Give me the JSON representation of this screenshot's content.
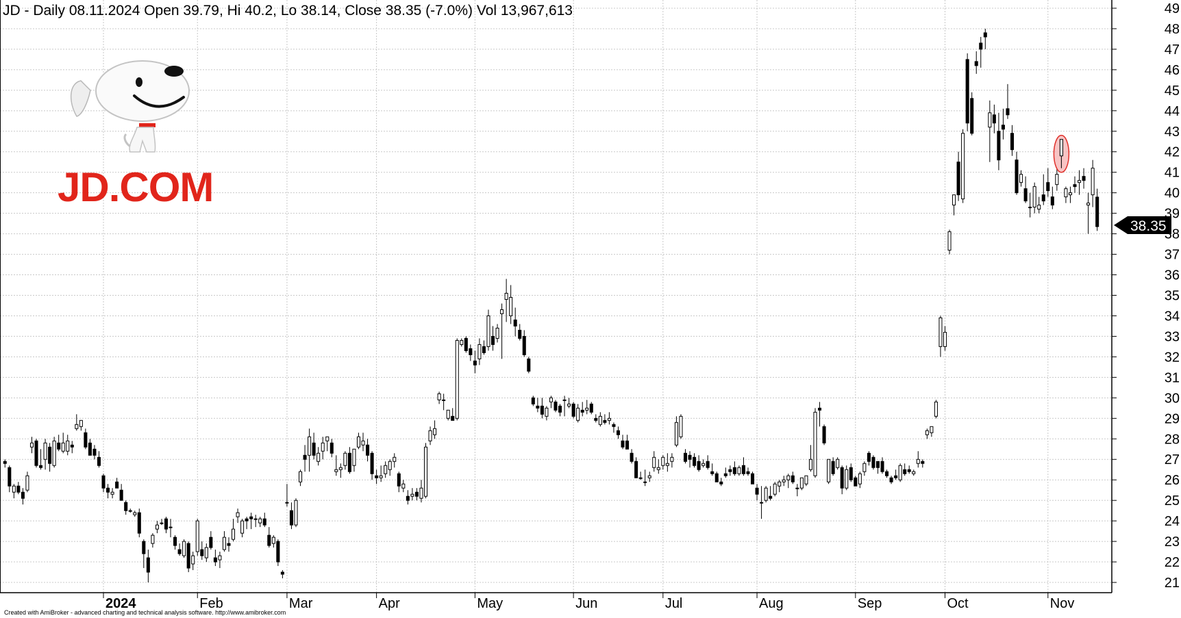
{
  "chart_data": {
    "type": "candlestick",
    "title": "JD - Daily 08.11.2024 Open 39.79, Hi 40.2, Lo 38.14, Close 38.35 (-7.0%) Vol 13,967,613",
    "ylim": [
      20.5,
      49.4
    ],
    "y_ticks": [
      21,
      22,
      23,
      24,
      25,
      26,
      27,
      28,
      29,
      30,
      31,
      32,
      33,
      34,
      35,
      36,
      37,
      38,
      39,
      40,
      41,
      42,
      43,
      44,
      45,
      46,
      47,
      48,
      49
    ],
    "x_labels": [
      {
        "label": "2024",
        "bold": true,
        "index": 22
      },
      {
        "label": "Feb",
        "bold": false,
        "index": 43
      },
      {
        "label": "Mar",
        "bold": false,
        "index": 63
      },
      {
        "label": "Apr",
        "bold": false,
        "index": 83
      },
      {
        "label": "May",
        "bold": false,
        "index": 105
      },
      {
        "label": "Jun",
        "bold": false,
        "index": 127
      },
      {
        "label": "Jul",
        "bold": false,
        "index": 147
      },
      {
        "label": "Aug",
        "bold": false,
        "index": 168
      },
      {
        "label": "Sep",
        "bold": false,
        "index": 190
      },
      {
        "label": "Oct",
        "bold": false,
        "index": 210
      },
      {
        "label": "Nov",
        "bold": false,
        "index": 233
      }
    ],
    "grid": true,
    "last_price": "38.35",
    "highlight_index": 236,
    "ohlc": [
      [
        26.9,
        27.0,
        26.6,
        26.8
      ],
      [
        26.6,
        26.7,
        25.4,
        25.7
      ],
      [
        25.4,
        25.8,
        25.1,
        25.7
      ],
      [
        25.7,
        25.9,
        25.3,
        25.4
      ],
      [
        25.4,
        25.6,
        24.8,
        25.1
      ],
      [
        25.5,
        26.4,
        25.4,
        26.2
      ],
      [
        27.6,
        28.1,
        27.3,
        27.8
      ],
      [
        27.9,
        28.0,
        26.6,
        26.7
      ],
      [
        26.7,
        27.5,
        26.5,
        26.6
      ],
      [
        27.0,
        28.0,
        26.5,
        27.8
      ],
      [
        27.6,
        27.8,
        26.4,
        26.8
      ],
      [
        26.7,
        28.1,
        26.6,
        27.9
      ],
      [
        27.8,
        28.2,
        27.4,
        27.5
      ],
      [
        27.4,
        28.3,
        27.3,
        27.8
      ],
      [
        27.4,
        28.2,
        27.2,
        27.9
      ],
      [
        27.7,
        27.9,
        27.3,
        27.6
      ],
      [
        28.5,
        29.2,
        28.4,
        28.7
      ],
      [
        28.6,
        28.9,
        28.4,
        28.9
      ],
      [
        28.3,
        28.5,
        27.5,
        27.6
      ],
      [
        27.8,
        28.0,
        27.2,
        27.2
      ],
      [
        27.5,
        27.7,
        27.0,
        27.2
      ],
      [
        27.1,
        27.4,
        26.6,
        26.7
      ],
      [
        26.2,
        26.3,
        25.4,
        25.6
      ],
      [
        25.6,
        25.8,
        25.1,
        25.4
      ],
      [
        25.3,
        25.6,
        25.1,
        25.4
      ],
      [
        25.9,
        26.1,
        25.6,
        25.6
      ],
      [
        25.5,
        25.8,
        25.0,
        25.0
      ],
      [
        24.9,
        25.0,
        24.3,
        24.5
      ],
      [
        24.5,
        24.6,
        24.4,
        24.5
      ],
      [
        24.3,
        24.5,
        24.2,
        24.4
      ],
      [
        24.4,
        24.6,
        23.2,
        23.4
      ],
      [
        23.0,
        23.1,
        21.7,
        22.4
      ],
      [
        22.2,
        22.6,
        21.0,
        21.5
      ],
      [
        22.9,
        23.4,
        22.7,
        23.3
      ],
      [
        23.6,
        24.0,
        23.4,
        23.8
      ],
      [
        23.9,
        24.1,
        23.8,
        23.9
      ],
      [
        24.1,
        24.2,
        23.4,
        23.6
      ],
      [
        23.7,
        24.1,
        23.2,
        23.7
      ],
      [
        23.2,
        23.3,
        22.6,
        22.8
      ],
      [
        22.6,
        22.9,
        22.3,
        22.4
      ],
      [
        22.3,
        23.1,
        22.2,
        23.0
      ],
      [
        22.9,
        23.0,
        21.5,
        21.7
      ],
      [
        21.9,
        22.5,
        21.6,
        22.3
      ],
      [
        22.5,
        24.1,
        22.3,
        24.0
      ],
      [
        22.6,
        23.0,
        22.1,
        22.3
      ],
      [
        22.2,
        22.9,
        22.0,
        22.7
      ],
      [
        23.2,
        23.5,
        22.6,
        22.7
      ],
      [
        22.2,
        22.6,
        21.8,
        22.0
      ],
      [
        22.1,
        22.5,
        21.7,
        22.3
      ],
      [
        22.6,
        23.5,
        22.5,
        23.2
      ],
      [
        22.9,
        23.2,
        22.5,
        22.8
      ],
      [
        23.1,
        24.1,
        23.0,
        23.6
      ],
      [
        24.2,
        24.6,
        23.9,
        24.4
      ],
      [
        23.4,
        24.1,
        23.2,
        24.0
      ],
      [
        24.1,
        24.2,
        23.6,
        24.0
      ],
      [
        24.2,
        24.4,
        23.6,
        24.1
      ],
      [
        24.1,
        24.3,
        23.7,
        24.1
      ],
      [
        23.9,
        24.2,
        23.7,
        24.1
      ],
      [
        24.1,
        24.4,
        23.7,
        23.8
      ],
      [
        23.3,
        23.7,
        22.7,
        22.8
      ],
      [
        22.9,
        23.3,
        22.7,
        23.2
      ],
      [
        23.0,
        23.1,
        21.8,
        22.0
      ],
      [
        21.5,
        21.6,
        21.2,
        21.4
      ],
      [
        24.9,
        25.8,
        24.7,
        24.9
      ],
      [
        24.5,
        24.9,
        23.6,
        23.8
      ],
      [
        23.8,
        25.1,
        23.7,
        25.0
      ],
      [
        25.9,
        26.5,
        25.7,
        26.4
      ],
      [
        27.2,
        27.7,
        26.4,
        27.0
      ],
      [
        27.2,
        28.5,
        26.4,
        28.1
      ],
      [
        27.8,
        28.3,
        27.0,
        27.2
      ],
      [
        26.9,
        27.6,
        26.7,
        27.3
      ],
      [
        27.4,
        28.1,
        27.0,
        27.8
      ],
      [
        27.9,
        28.1,
        27.4,
        28.1
      ],
      [
        27.8,
        28.0,
        27.1,
        27.3
      ],
      [
        26.4,
        27.2,
        26.2,
        26.5
      ],
      [
        26.5,
        26.8,
        26.1,
        26.6
      ],
      [
        26.7,
        27.4,
        26.5,
        27.3
      ],
      [
        27.3,
        27.6,
        26.3,
        26.4
      ],
      [
        26.7,
        27.5,
        26.4,
        27.5
      ],
      [
        27.6,
        28.3,
        27.5,
        28.1
      ],
      [
        27.7,
        28.3,
        27.4,
        27.9
      ],
      [
        27.7,
        28.0,
        26.9,
        27.2
      ],
      [
        27.3,
        27.4,
        26.0,
        26.3
      ],
      [
        26.2,
        26.5,
        25.8,
        26.1
      ],
      [
        26.1,
        26.7,
        25.9,
        26.2
      ],
      [
        26.3,
        26.9,
        26.1,
        26.7
      ],
      [
        26.5,
        27.0,
        26.2,
        26.9
      ],
      [
        26.9,
        27.3,
        26.6,
        27.1
      ],
      [
        26.3,
        26.4,
        25.4,
        25.7
      ],
      [
        25.6,
        26.0,
        25.4,
        25.8
      ],
      [
        25.2,
        25.5,
        24.8,
        25.0
      ],
      [
        25.2,
        25.6,
        25.0,
        25.3
      ],
      [
        25.4,
        25.6,
        25.0,
        25.2
      ],
      [
        25.1,
        26.0,
        24.9,
        25.6
      ],
      [
        25.2,
        27.8,
        25.1,
        27.6
      ],
      [
        27.9,
        28.6,
        27.7,
        28.4
      ],
      [
        28.2,
        28.9,
        28.0,
        28.5
      ],
      [
        29.9,
        30.3,
        29.7,
        30.2
      ],
      [
        29.9,
        30.2,
        29.4,
        29.9
      ],
      [
        29.0,
        29.4,
        28.9,
        29.4
      ],
      [
        29.1,
        29.5,
        28.9,
        28.9
      ],
      [
        29.0,
        32.9,
        28.9,
        32.8
      ],
      [
        32.6,
        32.9,
        32.5,
        32.8
      ],
      [
        32.9,
        33.0,
        32.2,
        32.3
      ],
      [
        32.4,
        32.6,
        31.8,
        32.1
      ],
      [
        31.8,
        32.3,
        31.2,
        31.6
      ],
      [
        31.9,
        32.9,
        31.6,
        32.6
      ],
      [
        32.5,
        32.8,
        32.1,
        32.2
      ],
      [
        32.5,
        34.3,
        32.3,
        34.0
      ],
      [
        33.0,
        33.5,
        32.3,
        32.6
      ],
      [
        32.9,
        33.6,
        32.7,
        33.4
      ],
      [
        34.1,
        34.6,
        31.9,
        34.3
      ],
      [
        34.8,
        35.8,
        33.7,
        35.1
      ],
      [
        34.0,
        35.5,
        33.6,
        34.9
      ],
      [
        33.8,
        34.4,
        33.0,
        33.5
      ],
      [
        33.3,
        33.6,
        32.8,
        32.9
      ],
      [
        33.0,
        33.3,
        32.0,
        32.1
      ],
      [
        31.9,
        32.0,
        31.2,
        31.3
      ],
      [
        30.0,
        30.1,
        29.6,
        29.7
      ],
      [
        29.6,
        30.0,
        29.3,
        29.5
      ],
      [
        29.6,
        30.0,
        29.0,
        29.2
      ],
      [
        29.1,
        29.6,
        28.9,
        29.5
      ],
      [
        29.8,
        30.1,
        29.5,
        30.0
      ],
      [
        29.8,
        29.9,
        29.3,
        29.4
      ],
      [
        29.6,
        29.7,
        29.1,
        29.3
      ],
      [
        29.9,
        30.1,
        29.1,
        29.9
      ],
      [
        29.6,
        30.0,
        29.5,
        29.7
      ],
      [
        29.7,
        29.8,
        29.0,
        29.1
      ],
      [
        28.9,
        29.7,
        28.8,
        29.5
      ],
      [
        29.4,
        29.8,
        29.1,
        29.3
      ],
      [
        29.4,
        29.9,
        29.2,
        29.5
      ],
      [
        29.7,
        29.8,
        29.2,
        29.3
      ],
      [
        29.0,
        29.2,
        28.8,
        28.9
      ],
      [
        28.7,
        29.3,
        28.6,
        29.1
      ],
      [
        28.9,
        29.2,
        28.7,
        28.8
      ],
      [
        28.9,
        29.3,
        28.7,
        29.0
      ],
      [
        28.7,
        28.8,
        28.3,
        28.6
      ],
      [
        28.4,
        28.6,
        28.0,
        28.2
      ],
      [
        27.9,
        28.2,
        27.5,
        27.6
      ],
      [
        27.9,
        28.2,
        27.5,
        27.5
      ],
      [
        27.3,
        27.5,
        26.8,
        26.9
      ],
      [
        26.9,
        27.1,
        26.1,
        26.1
      ],
      [
        26.1,
        26.4,
        26.0,
        26.1
      ],
      [
        25.9,
        26.5,
        25.7,
        25.9
      ],
      [
        26.1,
        26.4,
        25.9,
        26.2
      ],
      [
        26.6,
        27.4,
        26.4,
        27.1
      ],
      [
        26.5,
        27.0,
        26.3,
        26.6
      ],
      [
        26.7,
        27.2,
        26.5,
        27.1
      ],
      [
        26.7,
        27.3,
        26.4,
        26.8
      ],
      [
        26.9,
        27.3,
        26.6,
        27.1
      ],
      [
        27.7,
        29.1,
        27.6,
        28.8
      ],
      [
        28.1,
        29.2,
        28.0,
        29.1
      ],
      [
        27.3,
        27.5,
        26.8,
        26.9
      ],
      [
        27.2,
        27.4,
        26.6,
        27.0
      ],
      [
        27.1,
        27.3,
        26.6,
        26.7
      ],
      [
        26.9,
        27.2,
        26.4,
        26.5
      ],
      [
        26.7,
        27.0,
        26.6,
        26.8
      ],
      [
        26.9,
        27.2,
        26.5,
        26.6
      ],
      [
        26.4,
        26.8,
        26.2,
        26.3
      ],
      [
        26.3,
        26.4,
        25.9,
        25.9
      ],
      [
        25.9,
        26.1,
        25.7,
        25.8
      ],
      [
        26.3,
        26.6,
        26.1,
        26.2
      ],
      [
        26.5,
        26.7,
        26.2,
        26.4
      ],
      [
        26.6,
        26.9,
        26.2,
        26.3
      ],
      [
        26.3,
        26.7,
        26.2,
        26.6
      ],
      [
        26.7,
        27.1,
        26.2,
        26.3
      ],
      [
        26.4,
        26.6,
        26.2,
        26.3
      ],
      [
        26.3,
        26.4,
        25.8,
        25.8
      ],
      [
        25.6,
        25.8,
        25.0,
        25.3
      ],
      [
        24.9,
        25.7,
        24.1,
        24.9
      ],
      [
        25.0,
        25.7,
        24.9,
        25.6
      ],
      [
        25.2,
        25.7,
        25.0,
        25.1
      ],
      [
        25.3,
        25.9,
        25.2,
        25.8
      ],
      [
        25.7,
        26.0,
        25.4,
        25.9
      ],
      [
        25.9,
        26.2,
        25.7,
        26.0
      ],
      [
        26.0,
        26.3,
        25.6,
        26.2
      ],
      [
        26.2,
        26.4,
        25.8,
        25.9
      ],
      [
        25.6,
        25.8,
        25.2,
        25.6
      ],
      [
        25.6,
        26.1,
        25.5,
        26.1
      ],
      [
        25.8,
        26.2,
        25.7,
        26.2
      ],
      [
        26.5,
        27.7,
        26.4,
        27.0
      ],
      [
        26.2,
        29.5,
        26.1,
        29.3
      ],
      [
        29.5,
        29.8,
        28.6,
        29.4
      ],
      [
        28.6,
        28.7,
        27.7,
        27.8
      ],
      [
        25.9,
        27.0,
        25.8,
        27.0
      ],
      [
        26.9,
        27.1,
        26.2,
        26.3
      ],
      [
        26.6,
        27.1,
        26.5,
        27.0
      ],
      [
        26.6,
        26.7,
        25.3,
        25.6
      ],
      [
        25.6,
        26.7,
        25.5,
        26.5
      ],
      [
        26.6,
        26.8,
        25.9,
        26.0
      ],
      [
        26.1,
        26.2,
        25.7,
        25.7
      ],
      [
        25.8,
        26.4,
        25.6,
        26.3
      ],
      [
        26.4,
        26.9,
        26.2,
        26.8
      ],
      [
        27.3,
        27.4,
        26.7,
        26.9
      ],
      [
        27.1,
        27.2,
        26.5,
        26.6
      ],
      [
        26.9,
        26.9,
        26.3,
        26.6
      ],
      [
        26.9,
        27.1,
        26.3,
        26.4
      ],
      [
        26.4,
        26.5,
        26.1,
        26.2
      ],
      [
        26.1,
        26.2,
        25.8,
        25.9
      ],
      [
        26.2,
        26.5,
        26.0,
        26.1
      ],
      [
        26.0,
        26.8,
        25.9,
        26.7
      ],
      [
        26.5,
        26.8,
        26.2,
        26.3
      ],
      [
        26.5,
        26.7,
        26.3,
        26.4
      ],
      [
        26.3,
        26.5,
        26.2,
        26.4
      ],
      [
        26.8,
        27.4,
        26.6,
        27.0
      ],
      [
        26.9,
        27.0,
        26.6,
        26.8
      ],
      [
        28.2,
        28.5,
        28.0,
        28.4
      ],
      [
        28.3,
        28.6,
        28.1,
        28.6
      ],
      [
        29.1,
        29.9,
        29.0,
        29.8
      ],
      [
        32.5,
        34.0,
        32.0,
        33.9
      ],
      [
        32.5,
        33.5,
        32.3,
        33.2
      ],
      [
        37.2,
        38.2,
        37.0,
        38.1
      ],
      [
        39.4,
        39.9,
        38.9,
        39.9
      ],
      [
        41.5,
        42.0,
        39.6,
        39.9
      ],
      [
        39.7,
        43.1,
        39.5,
        42.9
      ],
      [
        46.5,
        46.8,
        43.0,
        43.4
      ],
      [
        44.6,
        44.9,
        42.8,
        42.9
      ],
      [
        46.4,
        46.9,
        45.8,
        46.2
      ],
      [
        47.3,
        47.6,
        46.1,
        47.0
      ],
      [
        47.8,
        48.0,
        47.0,
        47.6
      ],
      [
        43.2,
        44.5,
        41.5,
        43.9
      ],
      [
        43.8,
        44.3,
        42.9,
        43.4
      ],
      [
        43.0,
        43.9,
        41.1,
        41.6
      ],
      [
        43.3,
        44.1,
        42.6,
        43.1
      ],
      [
        44.1,
        45.3,
        43.6,
        43.8
      ],
      [
        42.9,
        43.3,
        41.8,
        42.1
      ],
      [
        41.6,
        42.0,
        39.9,
        40.0
      ],
      [
        40.5,
        41.1,
        40.3,
        40.9
      ],
      [
        40.2,
        40.8,
        39.5,
        39.6
      ],
      [
        39.3,
        40.0,
        38.8,
        39.3
      ],
      [
        39.3,
        40.5,
        39.0,
        40.3
      ],
      [
        39.2,
        39.8,
        39.0,
        39.4
      ],
      [
        39.9,
        40.9,
        39.4,
        39.6
      ],
      [
        40.5,
        41.2,
        39.8,
        40.1
      ],
      [
        39.8,
        40.3,
        39.2,
        39.4
      ],
      [
        40.4,
        41.2,
        40.1,
        40.9
      ],
      [
        41.8,
        42.6,
        41.2,
        42.6
      ],
      [
        39.8,
        40.3,
        39.5,
        40.2
      ],
      [
        39.9,
        40.3,
        39.5,
        40.0
      ],
      [
        40.4,
        40.8,
        40.0,
        40.3
      ],
      [
        40.5,
        41.1,
        39.9,
        40.6
      ],
      [
        40.8,
        41.2,
        40.2,
        40.6
      ],
      [
        39.4,
        40.0,
        38.0,
        39.5
      ],
      [
        39.9,
        41.6,
        39.3,
        41.2
      ],
      [
        39.79,
        40.2,
        38.14,
        38.35
      ]
    ]
  },
  "logo": {
    "wordmark": "JD.COM",
    "brand_color": "#e1251b",
    "icon": "jd-dog-mascot"
  },
  "footer": {
    "credit": "Created with AmiBroker - advanced charting and technical analysis software. http://www.amibroker.com"
  },
  "colors": {
    "up_candle": "#ffffff",
    "down_candle": "#000000",
    "grid": "#c8c8c8",
    "highlight_fill": "#f6b0b0",
    "highlight_stroke": "#e0302a",
    "last_price_bg": "#000000"
  }
}
